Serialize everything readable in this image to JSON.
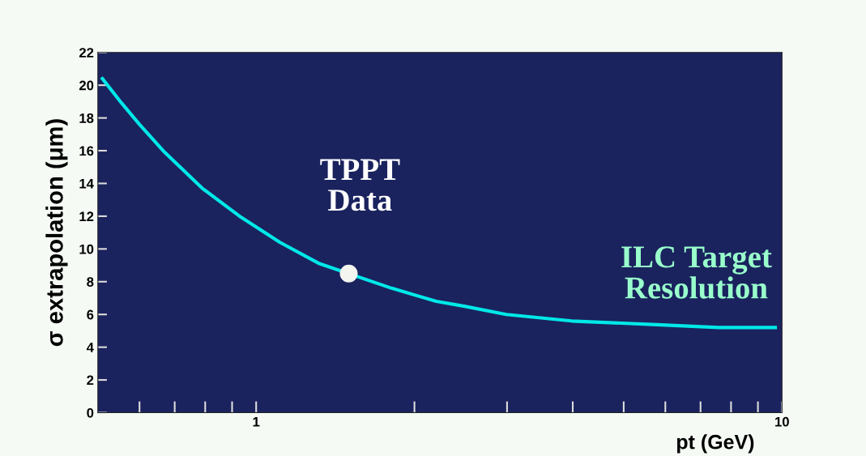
{
  "chart_data": {
    "type": "line",
    "xlabel": "pt (GeV)",
    "ylabel": "σ extrapolation (μm)",
    "log": "x",
    "xlim": [
      0.5,
      10
    ],
    "xticks": [
      {
        "value": 0.6,
        "label": null
      },
      {
        "value": 0.7,
        "label": null
      },
      {
        "value": 0.8,
        "label": null
      },
      {
        "value": 0.9,
        "label": null
      },
      1,
      {
        "value": 2,
        "label": null
      },
      {
        "value": 3,
        "label": null
      },
      {
        "value": 4,
        "label": null
      },
      {
        "value": 5,
        "label": null
      },
      {
        "value": 6,
        "label": null
      },
      {
        "value": 7,
        "label": null
      },
      {
        "value": 8,
        "label": null
      },
      {
        "value": 9,
        "label": null
      },
      10
    ],
    "ylim": [
      0,
      22
    ],
    "yticks": [
      0,
      2,
      4,
      6,
      8,
      10,
      12,
      14,
      16,
      18,
      20,
      22
    ],
    "grid": false,
    "legend": false,
    "series": [
      {
        "color": "#00e8e8",
        "marker": "none",
        "line_style": "solid",
        "x": [
          0.51,
          0.555,
          0.6,
          0.67,
          0.79,
          0.93,
          1.11,
          1.32,
          1.81,
          2.2,
          2.49,
          2.99,
          3.98,
          5.56,
          7.58,
          9.71
        ],
        "values": [
          20.4,
          18.9,
          17.6,
          15.9,
          13.7,
          12.0,
          10.4,
          9.1,
          7.6,
          6.8,
          6.5,
          6.0,
          5.6,
          5.4,
          5.2,
          5.2
        ]
      },
      {
        "type": "scatter",
        "color": "#f4f4f0",
        "marker": "circle",
        "x": [
          1.5
        ],
        "values": [
          8.5
        ]
      }
    ],
    "annotations": [
      {
        "text": "TPPT\nData",
        "x": 1.5,
        "y": 8.5
      },
      {
        "text": "ILC Target\nResolution",
        "x": 7.58,
        "y": 5.2
      }
    ]
  }
}
